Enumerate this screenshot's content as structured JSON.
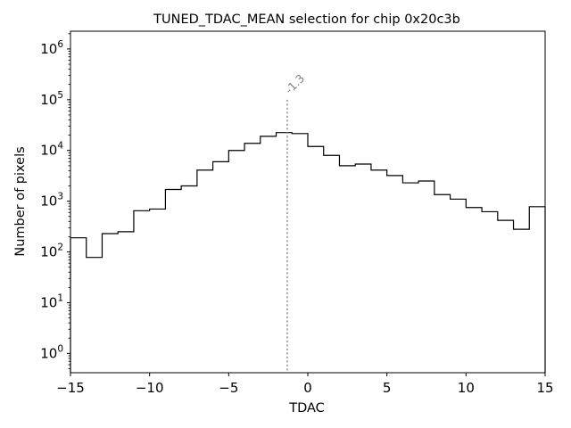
{
  "chart_data": {
    "type": "histogram",
    "title": "TUNED_TDAC_MEAN selection for chip 0x20c3b",
    "xlabel": "TDAC",
    "ylabel": "Number of pixels",
    "xlim": [
      -15,
      15
    ],
    "ylim_log10": [
      -0.38,
      6.35
    ],
    "yscale": "log",
    "x_ticks": [
      {
        "value": -15,
        "label": "−15"
      },
      {
        "value": -10,
        "label": "−10"
      },
      {
        "value": -5,
        "label": "−5"
      },
      {
        "value": 0,
        "label": "0"
      },
      {
        "value": 5,
        "label": "5"
      },
      {
        "value": 10,
        "label": "10"
      },
      {
        "value": 15,
        "label": "15"
      }
    ],
    "y_ticks": [
      {
        "exp": 0,
        "base": "10",
        "sup": "0"
      },
      {
        "exp": 1,
        "base": "10",
        "sup": "1"
      },
      {
        "exp": 2,
        "base": "10",
        "sup": "2"
      },
      {
        "exp": 3,
        "base": "10",
        "sup": "3"
      },
      {
        "exp": 4,
        "base": "10",
        "sup": "4"
      },
      {
        "exp": 5,
        "base": "10",
        "sup": "5"
      },
      {
        "exp": 6,
        "base": "10",
        "sup": "6"
      }
    ],
    "bin_edges": [
      -15,
      -14,
      -13,
      -12,
      -11,
      -10,
      -9,
      -8,
      -7,
      -6,
      -5,
      -4,
      -3,
      -2,
      -1,
      0,
      1,
      2,
      3,
      4,
      5,
      6,
      7,
      8,
      9,
      10,
      11,
      12,
      13,
      14,
      15
    ],
    "counts": [
      190,
      78,
      230,
      250,
      650,
      700,
      1700,
      2000,
      4100,
      6000,
      10000,
      13800,
      19000,
      22500,
      21500,
      12000,
      8000,
      5000,
      5400,
      4100,
      3200,
      2300,
      2500,
      1350,
      1100,
      750,
      620,
      420,
      280,
      780
    ],
    "vline": {
      "x": -1.3,
      "label": "-1.3",
      "y_top": 100000,
      "color": "#808080",
      "style": "dotted"
    }
  }
}
